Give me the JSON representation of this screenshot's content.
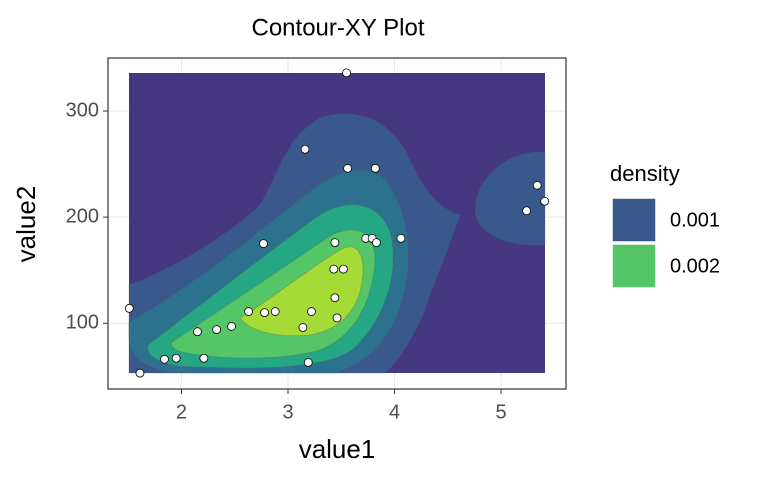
{
  "chart_data": {
    "type": "contour",
    "title": "Contour-XY Plot",
    "x_label": "value1",
    "y_label": "value2",
    "xlim": [
      1.31,
      5.61
    ],
    "ylim": [
      38,
      350
    ],
    "xticks": [
      2,
      3,
      4,
      5
    ],
    "yticks": [
      100,
      200,
      300
    ],
    "grid": true,
    "legend": {
      "title": "density",
      "position": "right",
      "levels": [
        {
          "label": "0.001",
          "color": "#39598c"
        },
        {
          "label": "0.002",
          "color": "#55c667"
        }
      ]
    },
    "points": {
      "color": "#ffffff",
      "stroke": "#000000",
      "x": [
        1.51,
        1.61,
        1.84,
        1.95,
        2.15,
        2.21,
        2.33,
        2.47,
        2.63,
        2.77,
        2.78,
        2.88,
        3.16,
        3.14,
        3.22,
        3.19,
        3.44,
        3.43,
        3.52,
        3.44,
        3.46,
        3.56,
        3.55,
        3.82,
        3.73,
        3.79,
        3.83,
        4.06,
        5.24,
        5.34,
        5.41
      ],
      "y": [
        114,
        53,
        66,
        67,
        92,
        67,
        94,
        97,
        111,
        175,
        110,
        111,
        264,
        96,
        111,
        63,
        176,
        151,
        151,
        124,
        105,
        246,
        336,
        246,
        180,
        180,
        176,
        180,
        206,
        230,
        215
      ]
    }
  }
}
